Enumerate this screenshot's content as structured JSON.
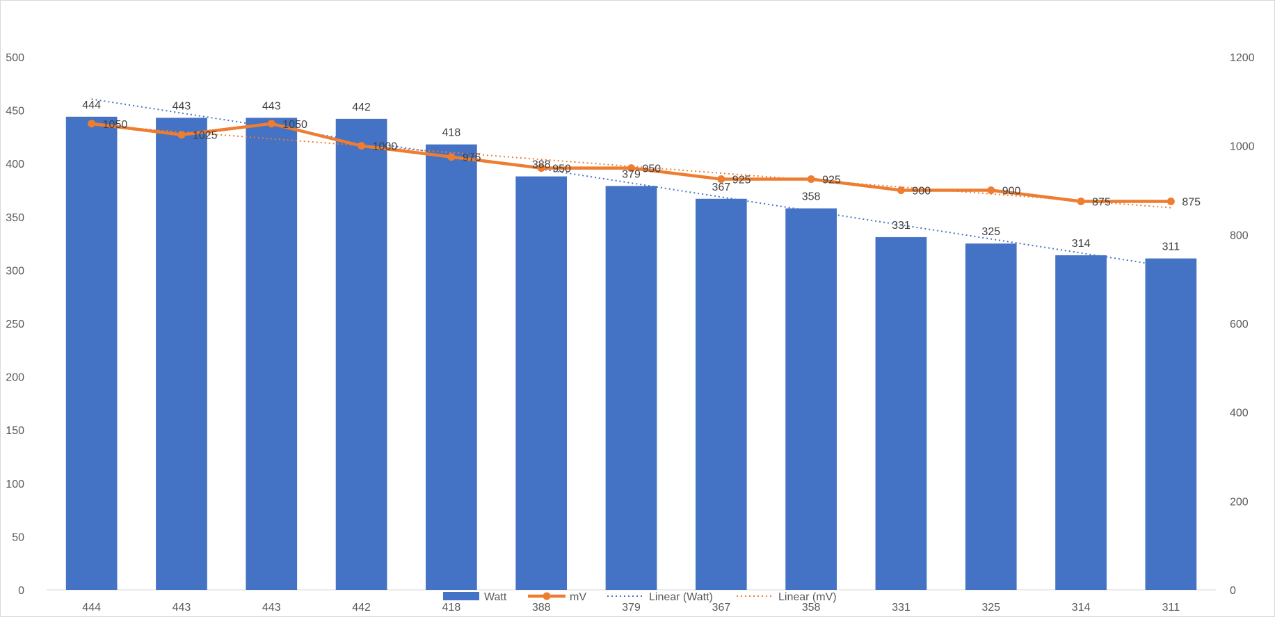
{
  "chart_data": {
    "type": "bar",
    "title": "",
    "categories": [
      "444",
      "443",
      "443",
      "442",
      "418",
      "388",
      "379",
      "367",
      "358",
      "331",
      "325",
      "314",
      "311"
    ],
    "series": [
      {
        "name": "Watt",
        "kind": "bar",
        "axis": "left",
        "color": "#4472C4",
        "values": [
          444,
          443,
          443,
          442,
          418,
          388,
          379,
          367,
          358,
          331,
          325,
          314,
          311
        ]
      },
      {
        "name": "mV",
        "kind": "line-markers",
        "axis": "right",
        "color": "#ED7D31",
        "values": [
          1050,
          1025,
          1050,
          1000,
          975,
          950,
          950,
          925,
          925,
          900,
          900,
          875,
          875
        ]
      }
    ],
    "trendlines": [
      {
        "name": "Linear (Watt)",
        "of": "Watt",
        "style": "dotted",
        "color": "#4472C4"
      },
      {
        "name": "Linear (mV)",
        "of": "mV",
        "style": "dotted",
        "color": "#ED7D31"
      }
    ],
    "y_left": {
      "min": 0,
      "max": 500,
      "step": 50
    },
    "y_right": {
      "min": 0,
      "max": 1200,
      "step": 200
    },
    "grid": false,
    "legend_position": "bottom",
    "data_labels": true
  }
}
